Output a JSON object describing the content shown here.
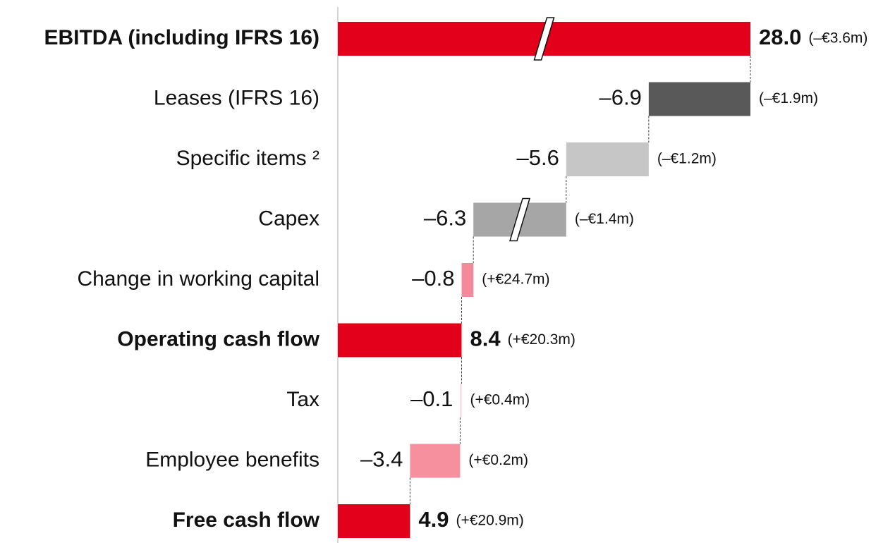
{
  "chart_data": {
    "type": "waterfall",
    "categories": [
      "EBITDA (including IFRS 16)",
      "Leases (IFRS 16)",
      "Specific items ²",
      "Capex",
      "Change in working capital",
      "Operating cash flow",
      "Tax",
      "Employee benefits",
      "Free cash flow"
    ],
    "values": [
      28.0,
      -6.9,
      -5.6,
      -6.3,
      -0.8,
      8.4,
      -0.1,
      -3.4,
      4.9
    ],
    "value_labels": [
      "28.0",
      "–6.9",
      "–5.6",
      "–6.3",
      "–0.8",
      "8.4",
      "–0.1",
      "–3.4",
      "4.9"
    ],
    "annotations": [
      "(–€3.6m)",
      "(–€1.9m)",
      "(–€1.2m)",
      "(–€1.4m)",
      "(+€24.7m)",
      "(+€20.3m)",
      "(+€0.4m)",
      "(+€0.2m)",
      "(+€20.9m)"
    ],
    "is_total": [
      true,
      false,
      false,
      false,
      false,
      true,
      false,
      false,
      true
    ],
    "colors": [
      "#e2001a",
      "#595959",
      "#c6c6c6",
      "#a6a6a6",
      "#f4899b",
      "#e2001a",
      "#fbd5dc",
      "#f6909f",
      "#e2001a"
    ],
    "break_bars": [
      0,
      3
    ],
    "xlim": [
      0,
      28
    ]
  }
}
